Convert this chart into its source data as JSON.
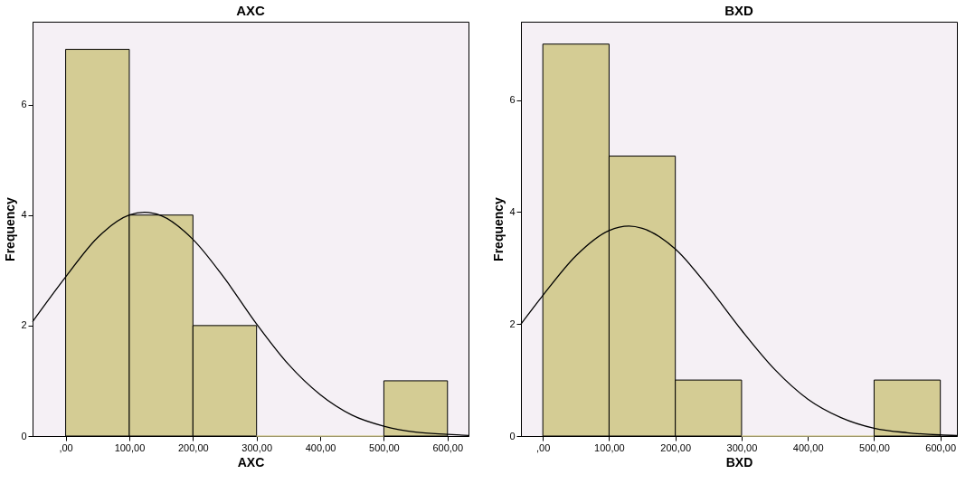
{
  "chart_data": [
    {
      "type": "histogram",
      "title": "AXC",
      "xlabel": "AXC",
      "ylabel": "Frequency",
      "bins": [
        0,
        100,
        200,
        300,
        400,
        500,
        600
      ],
      "values": [
        7,
        4,
        2,
        0,
        0,
        1
      ],
      "color": "#d4cc94",
      "xlim": [
        -52,
        633
      ],
      "ylim": [
        0,
        7.5
      ],
      "xticks": [
        {
          "value": 0,
          "label": ",00"
        },
        {
          "value": 100,
          "label": "100,00"
        },
        {
          "value": 200,
          "label": "200,00"
        },
        {
          "value": 300,
          "label": "300,00"
        },
        {
          "value": 400,
          "label": "400,00"
        },
        {
          "value": 500,
          "label": "500,00"
        },
        {
          "value": 600,
          "label": "600,00"
        }
      ],
      "yticks": [
        0,
        2,
        4,
        6
      ],
      "grid": false,
      "series": [
        {
          "type": "line",
          "color": "#000000",
          "x": [
            -52,
            0,
            50,
            100,
            124,
            150,
            200,
            250,
            300,
            350,
            400,
            450,
            500,
            550,
            600,
            633
          ],
          "values": [
            2.07,
            2.88,
            3.59,
            4.0,
            4.05,
            3.99,
            3.56,
            2.85,
            2.03,
            1.3,
            0.75,
            0.38,
            0.18,
            0.07,
            0.03,
            0.01
          ]
        }
      ]
    },
    {
      "type": "histogram",
      "title": "BXD",
      "xlabel": "BXD",
      "ylabel": "Frequency",
      "bins": [
        0,
        100,
        200,
        300,
        400,
        500,
        600
      ],
      "values": [
        7,
        5,
        1,
        0,
        0,
        1
      ],
      "color": "#d4cc94",
      "xlim": [
        -33,
        625
      ],
      "ylim": [
        0,
        7.4
      ],
      "xticks": [
        {
          "value": 0,
          "label": ",00"
        },
        {
          "value": 100,
          "label": "100,00"
        },
        {
          "value": 200,
          "label": "200,00"
        },
        {
          "value": 300,
          "label": "300,00"
        },
        {
          "value": 400,
          "label": "400,00"
        },
        {
          "value": 500,
          "label": "500,00"
        },
        {
          "value": 600,
          "label": "600,00"
        }
      ],
      "yticks": [
        0,
        2,
        4,
        6
      ],
      "grid": false,
      "series": [
        {
          "type": "line",
          "color": "#000000",
          "x": [
            -33,
            0,
            50,
            100,
            130,
            150,
            200,
            250,
            300,
            350,
            400,
            450,
            500,
            550,
            600,
            625
          ],
          "values": [
            2.0,
            2.51,
            3.22,
            3.67,
            3.75,
            3.71,
            3.34,
            2.66,
            1.89,
            1.19,
            0.66,
            0.33,
            0.14,
            0.06,
            0.02,
            0.01
          ]
        }
      ]
    }
  ]
}
